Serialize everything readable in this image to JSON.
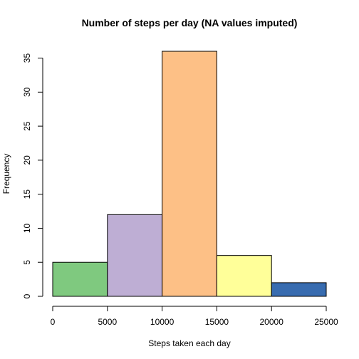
{
  "chart_data": {
    "type": "bar",
    "title": "Number of steps per day (NA values imputed)",
    "xlabel": "Steps taken each day",
    "ylabel": "Frequency",
    "bins": [
      {
        "from": 0,
        "to": 5000,
        "value": 5,
        "color": "#7FC97F"
      },
      {
        "from": 5000,
        "to": 10000,
        "value": 12,
        "color": "#BEAED4"
      },
      {
        "from": 10000,
        "to": 15000,
        "value": 36,
        "color": "#FDC086"
      },
      {
        "from": 15000,
        "to": 20000,
        "value": 6,
        "color": "#FFFF99"
      },
      {
        "from": 20000,
        "to": 25000,
        "value": 2,
        "color": "#386CB0"
      }
    ],
    "xlim": [
      0,
      25000
    ],
    "ylim": [
      0,
      36
    ],
    "x_ticks": [
      0,
      5000,
      10000,
      15000,
      20000,
      25000
    ],
    "x_tick_labels": [
      "0",
      "5000",
      "10000",
      "15000",
      "20000",
      "25000"
    ],
    "y_ticks": [
      0,
      5,
      10,
      15,
      20,
      25,
      30,
      35
    ],
    "y_tick_labels": [
      "0",
      "5",
      "10",
      "15",
      "20",
      "25",
      "30",
      "35"
    ],
    "grid": false,
    "legend": "none"
  }
}
